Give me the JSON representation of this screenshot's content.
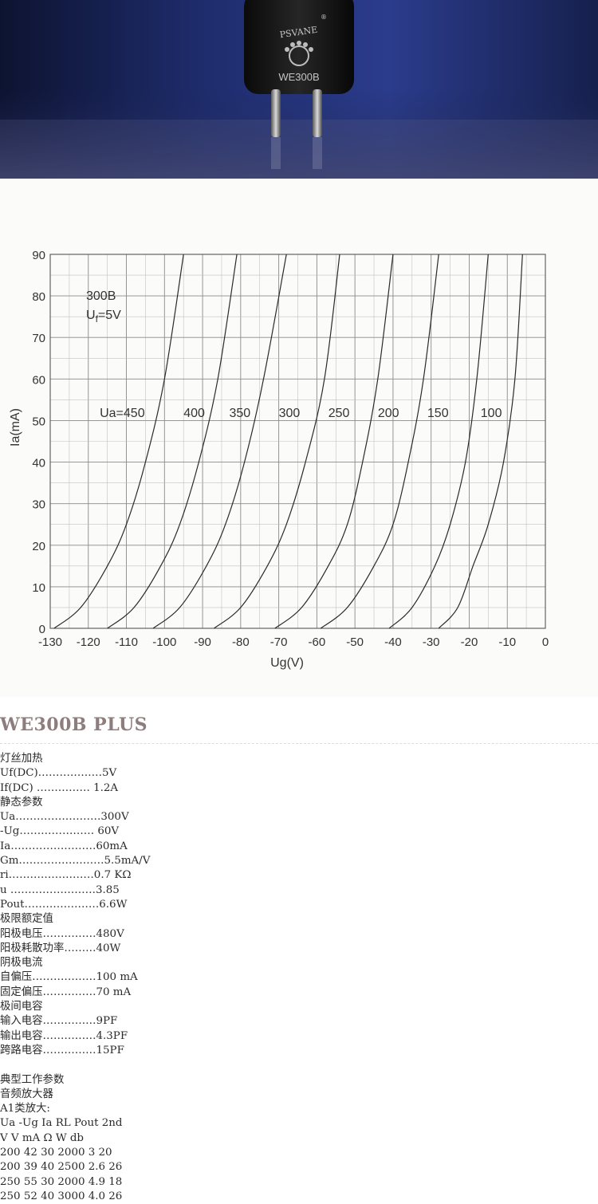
{
  "hero": {
    "brand_text": "PSVANE",
    "model_text": "WE300B",
    "registered_mark": "®"
  },
  "chart_data": {
    "type": "line",
    "title": "",
    "annotation_lines": [
      "300B",
      "Uf=5V"
    ],
    "xlabel": "Ug(V)",
    "ylabel": "Ia(mA)",
    "xlim": [
      -130,
      0
    ],
    "ylim": [
      0,
      90
    ],
    "x_ticks": [
      -130,
      -120,
      -110,
      -100,
      -90,
      -80,
      -70,
      -60,
      -50,
      -40,
      -30,
      -20,
      -10,
      0
    ],
    "y_ticks": [
      0,
      10,
      20,
      30,
      40,
      50,
      60,
      70,
      80,
      90
    ],
    "x_tick_labels": [
      "-130",
      "-120",
      "-110",
      "-100",
      "-90",
      "-80",
      "-70",
      "-60",
      "-50",
      "-40",
      "-30",
      "-20",
      "-10",
      "0"
    ],
    "y_tick_labels": [
      "0",
      "10",
      "20",
      "30",
      "40",
      "50",
      "60",
      "70",
      "80",
      "90"
    ],
    "grid": true,
    "series": [
      {
        "name": "Ua=450",
        "x": [
          -129,
          -122,
          -115,
          -110,
          -105,
          -100,
          -95
        ],
        "y": [
          0,
          5,
          15,
          25,
          40,
          60,
          90
        ]
      },
      {
        "name": "400",
        "x": [
          -115,
          -108,
          -101,
          -96,
          -91,
          -86,
          -81
        ],
        "y": [
          0,
          5,
          15,
          25,
          40,
          60,
          90
        ]
      },
      {
        "name": "350",
        "x": [
          -103,
          -96,
          -89,
          -84,
          -79,
          -74,
          -68
        ],
        "y": [
          0,
          5,
          15,
          25,
          40,
          60,
          90
        ]
      },
      {
        "name": "300",
        "x": [
          -87,
          -80,
          -73,
          -68,
          -63,
          -58,
          -54
        ],
        "y": [
          0,
          5,
          15,
          25,
          40,
          60,
          90
        ]
      },
      {
        "name": "250",
        "x": [
          -71,
          -64,
          -57,
          -52,
          -48,
          -44,
          -40
        ],
        "y": [
          0,
          5,
          15,
          25,
          40,
          60,
          90
        ]
      },
      {
        "name": "200",
        "x": [
          -59,
          -52,
          -45,
          -40,
          -36,
          -32,
          -28
        ],
        "y": [
          0,
          5,
          15,
          25,
          40,
          60,
          90
        ]
      },
      {
        "name": "150",
        "x": [
          -41,
          -35,
          -29,
          -25,
          -21,
          -18,
          -15
        ],
        "y": [
          0,
          5,
          15,
          25,
          40,
          60,
          90
        ]
      },
      {
        "name": "100",
        "x": [
          -28,
          -23,
          -19,
          -15,
          -11,
          -8,
          -6
        ],
        "y": [
          0,
          5,
          15,
          25,
          40,
          60,
          90
        ]
      }
    ],
    "label_positions_ia": 52,
    "label_positions_ug": [
      -117,
      -95,
      -83,
      -70,
      -57,
      -44,
      -31,
      -17
    ]
  },
  "spec": {
    "title": "WE300B PLUS",
    "lines": [
      "灯丝加热",
      "Uf(DC)………………5V",
      "If(DC) …………… 1.2A",
      "静态参数",
      "Ua……………………300V",
      "-Ug………………… 60V",
      "Ia……………………60mA",
      "Gm……………………5.5mA/V",
      "ri……………………0.7 KΩ",
      "u ……………………3.85",
      "Pout…………………6.6W",
      "极限额定值",
      "阳极电压……………480V",
      "阳极耗散功率………40W",
      "阴极电流",
      "自偏压………………100 mA",
      "固定偏压……………70 mA",
      "极间电容",
      "输入电容……………9PF",
      "输出电容……………4.3PF",
      "跨路电容……………15PF",
      "",
      "典型工作参数",
      "音频放大器",
      "A1类放大:",
      "Ua -Ug Ia RL Pout 2nd",
      "V V mA Ω W db",
      "200 42 30 2000 3 20",
      "200 39 40 2500 2.6 26",
      "250 55 30 2000 4.9 18",
      "250 52 40 3000 4.0 26"
    ]
  }
}
